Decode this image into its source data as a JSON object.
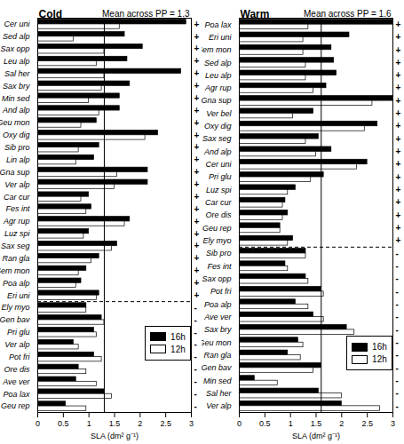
{
  "chart_data": [
    {
      "type": "bar",
      "orientation": "horizontal",
      "title": "Cold",
      "annotation": "Mean across PP = 1.3",
      "mean_line": 1.3,
      "xlabel": "SLA (dm² g⁻¹)",
      "xlim": [
        0,
        3
      ],
      "xticks": [
        0,
        0.5,
        1,
        1.5,
        2,
        2.5,
        3
      ],
      "grid": false,
      "legend": "lower right",
      "categories": [
        "Cer uni",
        "Sed alp",
        "Sax opp",
        "Leu alp",
        "Sal her",
        "Sax bry",
        "Min sed",
        "And alp",
        "Geu mon",
        "Oxy dig",
        "Sib pro",
        "Lin alp",
        "Gna sup",
        "Ver alp",
        "Car cur",
        "Fes int",
        "Agr rup",
        "Luz spi",
        "Sax seg",
        "Ran gla",
        "Sem mon",
        "Poa alp",
        "Eri uni",
        "Ely myo",
        "Gen bav",
        "Pri glu",
        "Ver alp",
        "Pot fri",
        "Ore dis",
        "Ave ver",
        "Poa lax",
        "Geu rep"
      ],
      "signs": [
        "+",
        "+",
        "+",
        "+",
        "+",
        "+",
        "+",
        "+",
        "+",
        "+",
        "+",
        "+",
        "+",
        "+",
        "+",
        "+",
        "+",
        "+",
        "+",
        "+",
        "+",
        "+",
        "+",
        "-",
        "-",
        "-",
        "-",
        "-",
        "-",
        "-",
        "-",
        "-"
      ],
      "series": [
        {
          "name": "16h",
          "color": "#000000",
          "values": [
            2.9,
            1.7,
            2.05,
            1.75,
            2.8,
            1.8,
            1.6,
            1.6,
            1.15,
            2.35,
            1.2,
            1.1,
            2.15,
            2.15,
            1.0,
            1.05,
            1.8,
            1.0,
            1.55,
            1.2,
            0.95,
            0.85,
            1.2,
            0.95,
            1.25,
            1.1,
            0.7,
            1.1,
            0.8,
            0.75,
            1.3,
            0.55
          ]
        },
        {
          "name": "12h",
          "color": "#ffffff",
          "values": [
            1.6,
            0.7,
            1.3,
            1.15,
            1.3,
            1.25,
            1.0,
            1.2,
            0.85,
            2.1,
            0.8,
            0.75,
            1.55,
            1.5,
            0.85,
            0.95,
            1.7,
            0.9,
            1.45,
            1.05,
            0.8,
            0.75,
            1.15,
            0.95,
            1.3,
            1.15,
            0.8,
            1.25,
            0.95,
            1.15,
            1.45,
            0.95
          ]
        }
      ]
    },
    {
      "type": "bar",
      "orientation": "horizontal",
      "title": "Warm",
      "annotation": "Mean across PP = 1.6",
      "mean_line": 1.6,
      "xlabel": "SLA (dm² g⁻¹)",
      "xlim": [
        0,
        3
      ],
      "xticks": [
        0,
        0.5,
        1,
        1.5,
        2,
        2.5,
        3
      ],
      "grid": false,
      "legend": "lower right",
      "categories": [
        "Poa lax",
        "Eri uni",
        "Sem mon",
        "Sed alp",
        "Leu alp",
        "Agr rup",
        "Gna sup",
        "Ver bel",
        "Oxy dig",
        "Sax seg",
        "And alp",
        "Cer uni",
        "Pri glu",
        "Luz spi",
        "Car cur",
        "Ore dis",
        "Geu rep",
        "Ely myo",
        "Sib pro",
        "Fes int",
        "Sax opp",
        "Pot fri",
        "Poa alp",
        "Ave ver",
        "Sax bry",
        "Geu mon",
        "Ran gla",
        "Gen bav",
        "Min sed",
        "Sal her",
        "Ver alp"
      ],
      "signs": [
        "+",
        "+",
        "+",
        "+",
        "+",
        "+",
        "+",
        "+",
        "+",
        "+",
        "+",
        "+",
        "+",
        "+",
        "+",
        "+",
        "+",
        "+",
        "-",
        "-",
        "-",
        "-",
        "-",
        "-",
        "-",
        "-",
        "-",
        "-",
        "-",
        "-",
        "-"
      ],
      "series": [
        {
          "name": "16h",
          "color": "#000000",
          "values": [
            3.0,
            2.15,
            1.8,
            1.85,
            1.9,
            1.7,
            3.0,
            1.45,
            2.7,
            1.55,
            1.8,
            2.5,
            1.65,
            1.1,
            0.9,
            0.95,
            0.8,
            1.05,
            1.3,
            0.9,
            1.3,
            1.6,
            1.1,
            1.45,
            2.1,
            1.15,
            0.95,
            1.6,
            0.3,
            1.55,
            2.0
          ]
        },
        {
          "name": "12h",
          "color": "#ffffff",
          "values": [
            1.35,
            1.25,
            1.25,
            1.3,
            1.3,
            1.45,
            2.6,
            1.05,
            2.45,
            1.3,
            1.5,
            2.3,
            1.4,
            0.95,
            0.85,
            0.85,
            0.8,
            0.95,
            1.3,
            0.95,
            1.35,
            1.65,
            1.35,
            1.65,
            2.25,
            1.25,
            1.2,
            1.45,
            0.75,
            2.0,
            2.75
          ]
        }
      ]
    }
  ]
}
